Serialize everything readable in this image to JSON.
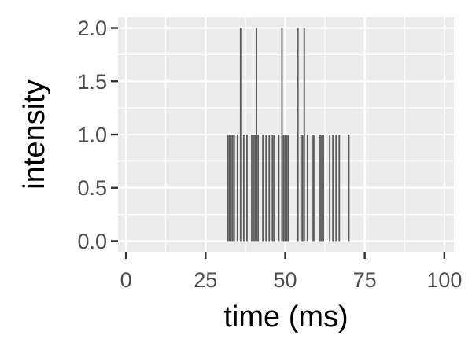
{
  "chart_data": {
    "type": "bar",
    "title": "",
    "xlabel": "time (ms)",
    "ylabel": "intensity",
    "xlim": [
      -2.5,
      103
    ],
    "ylim": [
      -0.1,
      2.1
    ],
    "x_ticks": [
      0,
      25,
      50,
      75,
      100
    ],
    "x_tick_labels": [
      "0",
      "25",
      "50",
      "75",
      "100"
    ],
    "y_ticks": [
      0.0,
      0.5,
      1.0,
      1.5,
      2.0
    ],
    "y_tick_labels": [
      "0.0",
      "0.5",
      "1.0",
      "1.5",
      "2.0"
    ],
    "grid": true,
    "legend": "none",
    "bar_color": "#595959",
    "panel_color": "#ebebeb",
    "grid_color": "#ffffff",
    "x": [
      32,
      32.5,
      33,
      33.5,
      34,
      35,
      36,
      37,
      38,
      39.5,
      40,
      40.5,
      41,
      41.5,
      43,
      44,
      45,
      46,
      46.5,
      48,
      49,
      49.5,
      50,
      50.5,
      51,
      54,
      55,
      55.5,
      56,
      57,
      58.5,
      59,
      61,
      61.5,
      62,
      64,
      65,
      66,
      67,
      70
    ],
    "values": [
      1,
      1,
      1,
      1,
      1,
      1,
      2,
      1,
      1,
      1,
      1,
      1,
      2,
      1,
      1,
      1,
      1,
      1,
      1,
      1,
      2,
      1,
      1,
      1,
      1,
      2,
      1,
      1,
      2,
      1,
      1,
      1,
      1,
      1,
      1,
      1,
      1,
      1,
      1,
      1
    ]
  }
}
